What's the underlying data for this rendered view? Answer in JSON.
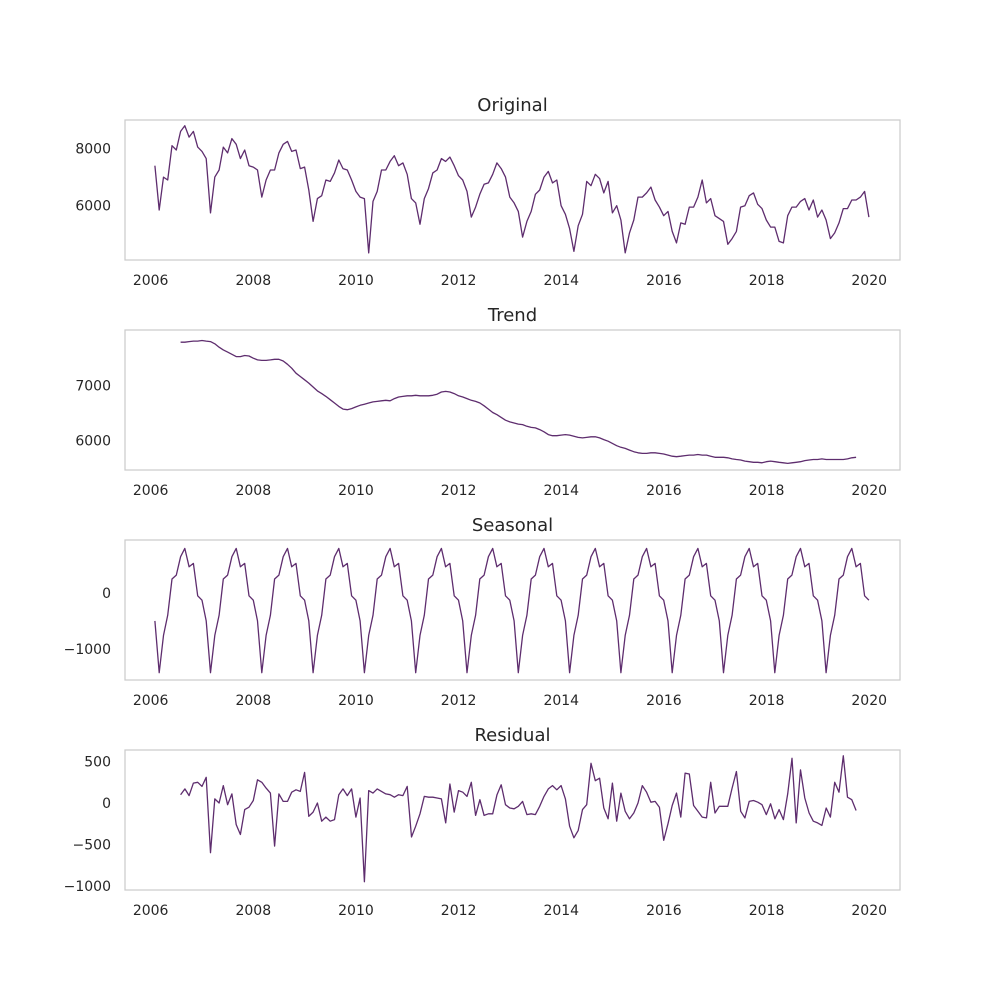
{
  "style": {
    "line_color": "#5e2d6e",
    "frame_color": "#cccccc",
    "background": "#ffffff"
  },
  "chart_data": [
    {
      "type": "line",
      "title": "Original",
      "xlabel": "",
      "ylabel": "",
      "xlim": [
        2005.5,
        2020.6
      ],
      "ylim": [
        4100,
        9000
      ],
      "xticks": [
        2006,
        2008,
        2010,
        2012,
        2014,
        2016,
        2018,
        2020
      ],
      "xtick_labels": [
        "2006",
        "2008",
        "2010",
        "2012",
        "2014",
        "2016",
        "2018",
        "2020"
      ],
      "yticks": [
        6000,
        8000
      ],
      "ytick_labels": [
        "6000",
        "8000"
      ],
      "grid": false,
      "x_start": 2006.083,
      "x_step": 0.0833,
      "values": [
        7400,
        5850,
        7000,
        6900,
        8100,
        7950,
        8600,
        8800,
        8400,
        8600,
        8050,
        7900,
        7650,
        5750,
        7000,
        7250,
        8050,
        7850,
        8350,
        8150,
        7650,
        7950,
        7400,
        7350,
        7250,
        6300,
        6900,
        7250,
        7250,
        7850,
        8150,
        8250,
        7900,
        7950,
        7300,
        7350,
        6550,
        5450,
        6250,
        6350,
        6900,
        6850,
        7150,
        7600,
        7300,
        7250,
        6900,
        6500,
        6300,
        6250,
        4350,
        6150,
        6500,
        7250,
        7250,
        7550,
        7750,
        7400,
        7500,
        7100,
        6250,
        6100,
        5350,
        6250,
        6600,
        7150,
        7250,
        7650,
        7550,
        7700,
        7400,
        7050,
        6900,
        6500,
        5600,
        5950,
        6400,
        6750,
        6800,
        7100,
        7500,
        7300,
        7000,
        6300,
        6100,
        5800,
        4900,
        5450,
        5800,
        6400,
        6550,
        7000,
        7200,
        6800,
        6900,
        6000,
        5700,
        5200,
        4400,
        5300,
        5700,
        6850,
        6700,
        7100,
        6950,
        6450,
        6850,
        5750,
        6000,
        5500,
        4350,
        5050,
        5500,
        6300,
        6300,
        6450,
        6650,
        6200,
        5950,
        5650,
        5800,
        5100,
        4700,
        5400,
        5350,
        5950,
        5950,
        6300,
        6900,
        6100,
        6250,
        5650,
        5550,
        5450,
        4650,
        4850,
        5100,
        5950,
        6000,
        6350,
        6450,
        6050,
        5900,
        5500,
        5250,
        5250,
        4750,
        4700,
        5650,
        5950,
        5950,
        6150,
        6250,
        5850,
        6200,
        5600,
        5850,
        5500,
        4850,
        5050,
        5400,
        5900,
        5900,
        6200,
        6200,
        6300,
        6500,
        5600
      ]
    },
    {
      "type": "line",
      "title": "Trend",
      "xlabel": "",
      "ylabel": "",
      "xlim": [
        2005.5,
        2020.6
      ],
      "ylim": [
        5470,
        8000
      ],
      "xticks": [
        2006,
        2008,
        2010,
        2012,
        2014,
        2016,
        2018,
        2020
      ],
      "xtick_labels": [
        "2006",
        "2008",
        "2010",
        "2012",
        "2014",
        "2016",
        "2018",
        "2020"
      ],
      "yticks": [
        6000,
        7000
      ],
      "ytick_labels": [
        "6000",
        "7000"
      ],
      "grid": false,
      "x_start": 2006.583,
      "x_step": 0.0833,
      "values": [
        7780,
        7780,
        7790,
        7800,
        7800,
        7810,
        7800,
        7790,
        7750,
        7690,
        7640,
        7600,
        7560,
        7520,
        7520,
        7540,
        7530,
        7490,
        7460,
        7450,
        7450,
        7460,
        7470,
        7470,
        7440,
        7380,
        7310,
        7220,
        7160,
        7100,
        7040,
        6970,
        6900,
        6850,
        6800,
        6740,
        6680,
        6620,
        6570,
        6560,
        6580,
        6610,
        6640,
        6660,
        6680,
        6700,
        6710,
        6720,
        6730,
        6720,
        6760,
        6790,
        6800,
        6810,
        6810,
        6820,
        6810,
        6810,
        6810,
        6820,
        6840,
        6880,
        6890,
        6880,
        6850,
        6810,
        6790,
        6760,
        6730,
        6710,
        6680,
        6630,
        6570,
        6510,
        6470,
        6420,
        6370,
        6340,
        6320,
        6300,
        6290,
        6260,
        6240,
        6230,
        6200,
        6160,
        6110,
        6090,
        6090,
        6100,
        6110,
        6100,
        6080,
        6060,
        6050,
        6060,
        6070,
        6070,
        6050,
        6020,
        5990,
        5950,
        5910,
        5880,
        5860,
        5830,
        5800,
        5780,
        5770,
        5770,
        5780,
        5780,
        5770,
        5760,
        5740,
        5720,
        5710,
        5720,
        5730,
        5740,
        5740,
        5750,
        5740,
        5740,
        5720,
        5700,
        5700,
        5700,
        5690,
        5670,
        5660,
        5650,
        5630,
        5620,
        5610,
        5610,
        5600,
        5620,
        5630,
        5620,
        5610,
        5600,
        5590,
        5600,
        5610,
        5620,
        5640,
        5650,
        5660,
        5660,
        5670,
        5660,
        5660,
        5660,
        5660,
        5660,
        5670,
        5690,
        5700
      ]
    },
    {
      "type": "line",
      "title": "Seasonal",
      "xlabel": "",
      "ylabel": "",
      "xlim": [
        2005.5,
        2020.6
      ],
      "ylim": [
        -1560,
        950
      ],
      "xticks": [
        2006,
        2008,
        2010,
        2012,
        2014,
        2016,
        2018,
        2020
      ],
      "xtick_labels": [
        "2006",
        "2008",
        "2010",
        "2012",
        "2014",
        "2016",
        "2018",
        "2020"
      ],
      "yticks": [
        -1000,
        0
      ],
      "ytick_labels": [
        "−1000",
        "0"
      ],
      "grid": false,
      "x_start": 2006.083,
      "x_step": 0.0833,
      "season_pattern": [
        -500,
        -1430,
        -760,
        -400,
        250,
        320,
        650,
        800,
        470,
        530,
        -50,
        -130
      ],
      "seasonal_cycles": 14
    },
    {
      "type": "line",
      "title": "Residual",
      "xlabel": "",
      "ylabel": "",
      "xlim": [
        2005.5,
        2020.6
      ],
      "ylim": [
        -1050,
        640
      ],
      "xticks": [
        2006,
        2008,
        2010,
        2012,
        2014,
        2016,
        2018,
        2020
      ],
      "xtick_labels": [
        "2006",
        "2008",
        "2010",
        "2012",
        "2014",
        "2016",
        "2018",
        "2020"
      ],
      "yticks": [
        -1000,
        -500,
        0,
        500
      ],
      "ytick_labels": [
        "−1000",
        "−500",
        "0",
        "500"
      ],
      "grid": false,
      "x_start": 2006.583,
      "x_step": 0.0833,
      "values": [
        100,
        170,
        90,
        240,
        250,
        200,
        310,
        -600,
        50,
        0,
        210,
        -20,
        110,
        -260,
        -380,
        -80,
        -50,
        30,
        280,
        250,
        180,
        120,
        -520,
        110,
        20,
        20,
        130,
        160,
        140,
        370,
        -160,
        -110,
        0,
        -220,
        -170,
        -220,
        -200,
        100,
        170,
        90,
        170,
        -170,
        60,
        -950,
        150,
        120,
        170,
        140,
        110,
        100,
        70,
        100,
        90,
        200,
        -410,
        -280,
        -130,
        80,
        70,
        70,
        60,
        50,
        -240,
        230,
        -110,
        150,
        130,
        80,
        250,
        -150,
        40,
        -150,
        -130,
        -130,
        100,
        220,
        -20,
        -60,
        -70,
        -40,
        20,
        -140,
        -130,
        -140,
        -40,
        80,
        170,
        210,
        160,
        210,
        50,
        -280,
        -420,
        -330,
        -80,
        -20,
        480,
        270,
        300,
        -60,
        -190,
        240,
        -220,
        120,
        -100,
        -190,
        -120,
        0,
        210,
        130,
        10,
        20,
        -50,
        -450,
        -250,
        -30,
        120,
        -170,
        360,
        350,
        -30,
        -100,
        -170,
        -180,
        250,
        -120,
        -40,
        -40,
        -40,
        180,
        380,
        -100,
        -180,
        20,
        30,
        10,
        -20,
        -140,
        -10,
        -190,
        -80,
        -200,
        110,
        540,
        -240,
        400,
        60,
        -120,
        -220,
        -240,
        -270,
        -60,
        -170,
        250,
        130,
        570,
        70,
        40,
        -90
      ]
    }
  ]
}
